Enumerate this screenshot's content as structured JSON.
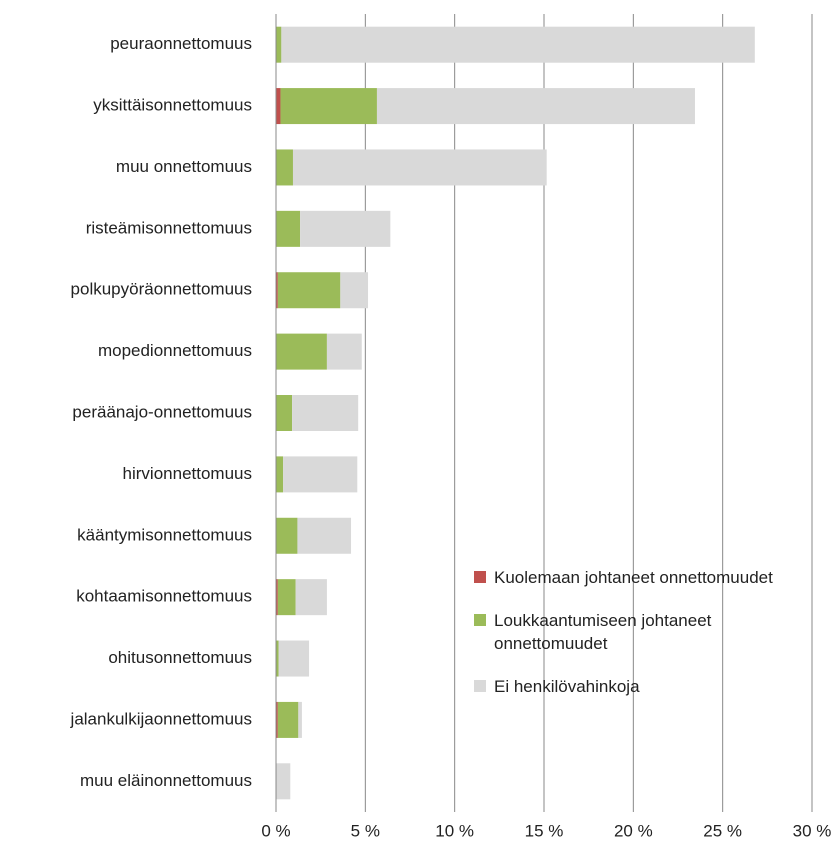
{
  "chart_data": {
    "type": "stacked-barh",
    "categories": [
      "peuraonnettomuus",
      "yksittäisonnettomuus",
      "muu onnettomuus",
      "risteämisonnettomuus",
      "polkupyöräonnettomuus",
      "mopedionnettomuus",
      "peräänajo-onnettomuus",
      "hirvionnettomuus",
      "kääntymisonnettomuus",
      "kohtaamisonnettomuus",
      "ohitusonnettomuus",
      "jalankulkijaonnettomuus",
      "muu eläinonnettomuus"
    ],
    "series": [
      {
        "name": "Kuolemaan johtaneet onnettomuudet",
        "color": "#c0504d",
        "values": [
          0,
          0.25,
          0,
          0,
          0.1,
          0,
          0,
          0,
          0,
          0.1,
          0,
          0.1,
          0
        ]
      },
      {
        "name": "Loukkaantumiseen johtaneet onnettomuudet",
        "color": "#9bbb59",
        "values": [
          0.3,
          5.4,
          0.95,
          1.35,
          3.5,
          2.85,
          0.9,
          0.4,
          1.2,
          1.0,
          0.15,
          1.15,
          0
        ]
      },
      {
        "name": "Ei henkilövahinkoja",
        "color": "#d9d9d9",
        "values": [
          26.5,
          17.8,
          14.2,
          5.05,
          1.55,
          1.95,
          3.7,
          4.15,
          3.0,
          1.75,
          1.7,
          0.2,
          0.8
        ]
      }
    ],
    "xlim": [
      0,
      30
    ],
    "xticks": [
      {
        "value": 0,
        "label": "0 %"
      },
      {
        "value": 5,
        "label": "5 %"
      },
      {
        "value": 10,
        "label": "10 %"
      },
      {
        "value": 15,
        "label": "15 %"
      },
      {
        "value": 20,
        "label": "20 %"
      },
      {
        "value": 25,
        "label": "25 %"
      },
      {
        "value": 30,
        "label": "30 %"
      }
    ],
    "grid": true,
    "legend": "lower right"
  }
}
